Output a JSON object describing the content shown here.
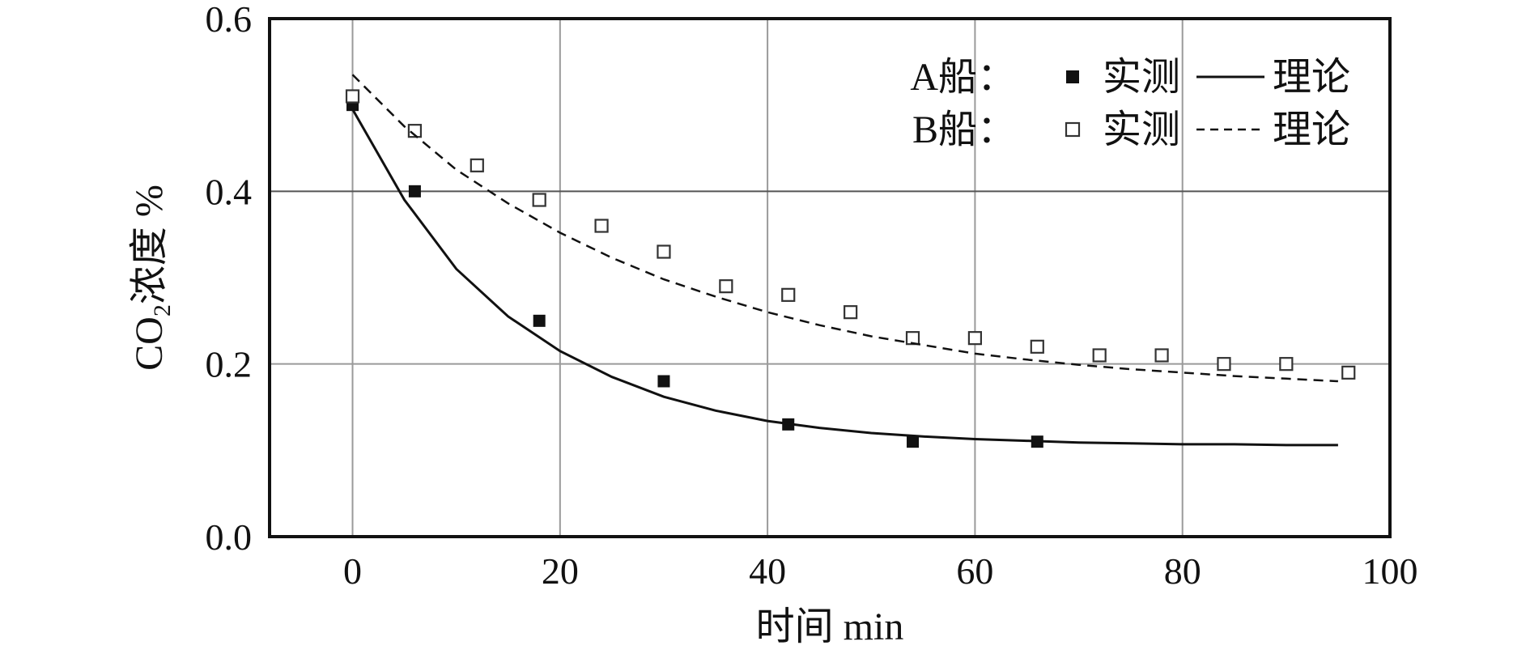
{
  "chart_data": {
    "type": "scatter",
    "title": "",
    "xlabel": "时间 min",
    "ylabel": {
      "prefix": "CO",
      "subscript": "2",
      "suffix": "浓度 %"
    },
    "xlim": [
      -8,
      100
    ],
    "ylim": [
      0,
      0.6
    ],
    "xticks": [
      0,
      20,
      40,
      60,
      80,
      100
    ],
    "yticks": [
      0.0,
      0.2,
      0.4,
      0.6
    ],
    "ytick_labels": [
      "0.0",
      "0.2",
      "0.4",
      "0.6"
    ],
    "grid": true,
    "legend_position": "top-right",
    "series": [
      {
        "name": "实测",
        "group": "A船",
        "kind": "measured",
        "marker": "filled-square",
        "x": [
          0,
          6,
          18,
          30,
          42,
          54,
          66
        ],
        "y": [
          0.5,
          0.4,
          0.25,
          0.18,
          0.13,
          0.11,
          0.11
        ]
      },
      {
        "name": "理论",
        "group": "A船",
        "kind": "theory",
        "line_style": "solid",
        "x": [
          0,
          5,
          10,
          15,
          20,
          25,
          30,
          35,
          40,
          45,
          50,
          55,
          60,
          65,
          70,
          75,
          80,
          85,
          90,
          95
        ],
        "y": [
          0.495,
          0.39,
          0.31,
          0.255,
          0.215,
          0.185,
          0.162,
          0.146,
          0.134,
          0.126,
          0.12,
          0.116,
          0.113,
          0.111,
          0.109,
          0.108,
          0.107,
          0.107,
          0.106,
          0.106
        ]
      },
      {
        "name": "实测",
        "group": "B船",
        "kind": "measured",
        "marker": "open-square",
        "x": [
          0,
          6,
          12,
          18,
          24,
          30,
          36,
          42,
          48,
          54,
          60,
          66,
          72,
          78,
          84,
          90,
          96
        ],
        "y": [
          0.51,
          0.47,
          0.43,
          0.39,
          0.36,
          0.33,
          0.29,
          0.28,
          0.26,
          0.23,
          0.23,
          0.22,
          0.21,
          0.21,
          0.2,
          0.2,
          0.19
        ]
      },
      {
        "name": "理论",
        "group": "B船",
        "kind": "theory",
        "line_style": "dashed",
        "x": [
          0,
          5,
          10,
          15,
          20,
          25,
          30,
          35,
          40,
          45,
          50,
          55,
          60,
          65,
          70,
          75,
          80,
          85,
          90,
          95
        ],
        "y": [
          0.535,
          0.475,
          0.425,
          0.386,
          0.352,
          0.323,
          0.298,
          0.278,
          0.26,
          0.245,
          0.232,
          0.222,
          0.212,
          0.205,
          0.199,
          0.194,
          0.19,
          0.186,
          0.183,
          0.18
        ]
      }
    ],
    "legend": [
      {
        "group": "A船",
        "separator": "：",
        "measured_label": "实测",
        "theory_label": "理论",
        "marker": "filled-square",
        "line_style": "solid"
      },
      {
        "group": "B船",
        "separator": "：",
        "measured_label": "实测",
        "theory_label": "理论",
        "marker": "open-square",
        "line_style": "dashed"
      }
    ]
  }
}
